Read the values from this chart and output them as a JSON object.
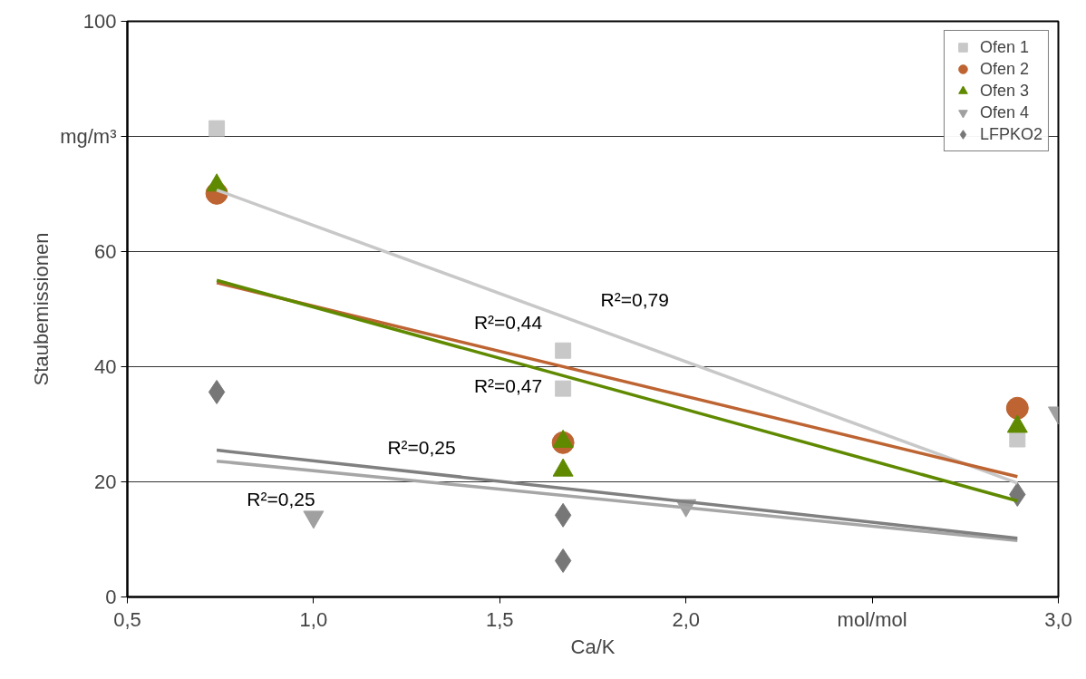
{
  "chart_data": {
    "type": "scatter",
    "xlabel": "Ca/K",
    "ylabel": "Staubemissionen",
    "xlim": [
      0.5,
      3.0
    ],
    "ylim": [
      0,
      100
    ],
    "xticks": [
      {
        "value": 0.5,
        "label": "0,5"
      },
      {
        "value": 1.0,
        "label": "1,0"
      },
      {
        "value": 1.5,
        "label": "1,5"
      },
      {
        "value": 2.0,
        "label": "2,0"
      },
      {
        "value": 2.5,
        "label": "mol/mol"
      },
      {
        "value": 3.0,
        "label": "3,0"
      }
    ],
    "yticks": [
      0,
      20,
      40,
      60,
      {
        "value": 80,
        "label": "mg/m³"
      },
      100
    ],
    "grid": "y",
    "legend": "top right",
    "series": [
      {
        "name": "Ofen 1",
        "type": "scatter",
        "marker": "square",
        "color": "#c8c8c8",
        "x": [
          0.74,
          1.67,
          1.67,
          2.89
        ],
        "values": [
          81.4,
          42.8,
          36.2,
          27.4
        ]
      },
      {
        "name": "Ofen 2",
        "type": "scatter",
        "marker": "circle",
        "color": "#bd6432",
        "x": [
          0.74,
          1.67,
          2.89
        ],
        "values": [
          70.1,
          26.8,
          32.8
        ]
      },
      {
        "name": "Ofen 3",
        "type": "scatter",
        "marker": "triangle",
        "color": "#5f8a00",
        "x": [
          0.74,
          1.67,
          1.67,
          2.89
        ],
        "values": [
          71.5,
          27.0,
          22.0,
          29.6
        ]
      },
      {
        "name": "Ofen 4",
        "type": "scatter",
        "marker": "triangle_down",
        "color": "#a0a0a0",
        "x": [
          1.0,
          2.0,
          3.0
        ],
        "values": [
          13.9,
          15.9,
          32.0
        ]
      },
      {
        "name": "LFPKO2",
        "type": "scatter",
        "marker": "diamond",
        "color": "#777777",
        "x": [
          0.74,
          1.67,
          1.67,
          2.89
        ],
        "values": [
          35.6,
          14.2,
          6.3,
          17.8
        ]
      },
      {
        "type": "line",
        "color": "#c8c8c8",
        "x": [
          0.74,
          2.89
        ],
        "values": [
          70.7,
          19.8
        ]
      },
      {
        "type": "line",
        "color": "#bd6432",
        "x": [
          0.74,
          2.89
        ],
        "values": [
          54.6,
          20.9
        ]
      },
      {
        "type": "line",
        "color": "#5f8a00",
        "x": [
          0.74,
          2.89
        ],
        "values": [
          55.0,
          16.7
        ]
      },
      {
        "type": "line",
        "color": "#a6a6a6",
        "x": [
          0.74,
          2.89
        ],
        "values": [
          23.6,
          9.8
        ]
      },
      {
        "type": "line",
        "color": "#808080",
        "x": [
          0.74,
          2.89
        ],
        "values": [
          25.5,
          10.2
        ]
      }
    ],
    "annotations": [
      "R²=0,79",
      "R²=0,44",
      "R²=0,47",
      "R²=0,25",
      "R²=0,25"
    ]
  }
}
